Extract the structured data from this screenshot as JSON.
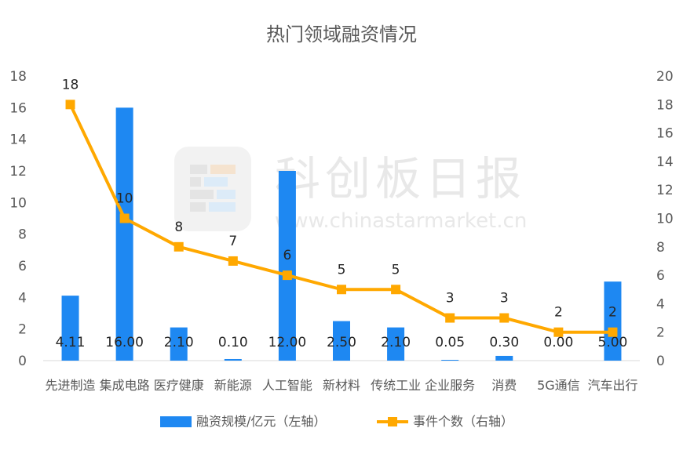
{
  "chart_data": {
    "type": "bar+line",
    "title": "热门领域融资情况",
    "watermark": {
      "brand": "科创板日报",
      "url": "www.chinastarmarket.cn"
    },
    "categories": [
      "先进制造",
      "集成电路",
      "医疗健康",
      "新能源",
      "人工智能",
      "新材料",
      "传统工业",
      "企业服务",
      "消费",
      "5G通信",
      "汽车出行"
    ],
    "series": [
      {
        "name": "融资规模/亿元（左轴）",
        "kind": "bar",
        "axis": "left",
        "color": "#1e88f2",
        "values": [
          4.11,
          16.0,
          2.1,
          0.1,
          12.0,
          2.5,
          2.1,
          0.05,
          0.3,
          0.0,
          5.0
        ],
        "labels": [
          "4.11",
          "16.00",
          "2.10",
          "0.10",
          "12.00",
          "2.50",
          "2.10",
          "0.05",
          "0.30",
          "0.00",
          "5.00"
        ]
      },
      {
        "name": "事件个数（右轴）",
        "kind": "line",
        "axis": "right",
        "color": "#ffa800",
        "values": [
          18,
          10,
          8,
          7,
          6,
          5,
          5,
          3,
          3,
          2,
          2
        ],
        "labels": [
          "18",
          "10",
          "8",
          "7",
          "6",
          "5",
          "5",
          "3",
          "3",
          "2",
          "2"
        ]
      }
    ],
    "y_left": {
      "min": 0,
      "max": 18,
      "ticks": [
        "0",
        "2",
        "4",
        "6",
        "8",
        "10",
        "12",
        "14",
        "16",
        "18"
      ]
    },
    "y_right": {
      "min": 0,
      "max": 20,
      "ticks": [
        "0",
        "2",
        "4",
        "6",
        "8",
        "10",
        "12",
        "14",
        "16",
        "18",
        "20"
      ]
    },
    "grid": false,
    "legend_position": "bottom",
    "colors": {
      "text": "#595959",
      "axis": "#d9d9d9",
      "watermark": "#e6e6e6"
    }
  }
}
